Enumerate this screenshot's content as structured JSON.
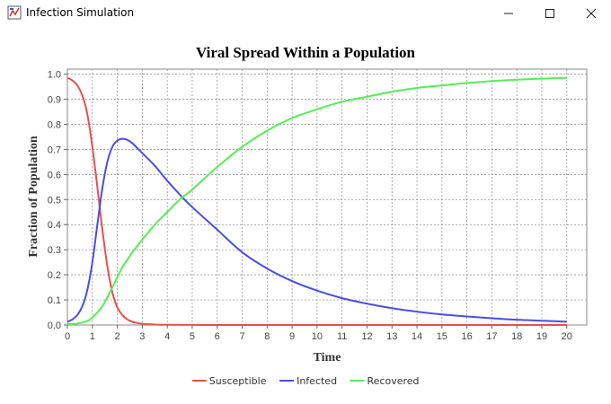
{
  "window": {
    "title": "Infection Simulation",
    "icon": "java-app-icon",
    "controls": [
      "minimize-icon",
      "maximize-icon",
      "close-icon"
    ]
  },
  "chart_data": {
    "type": "line",
    "title": "Viral Spread Within a Population",
    "xlabel": "Time",
    "ylabel": "Fraction of Population",
    "xlim": [
      0,
      20.8
    ],
    "ylim": [
      0,
      1.02
    ],
    "xticks": [
      0,
      1,
      2,
      3,
      4,
      5,
      6,
      7,
      8,
      9,
      10,
      11,
      12,
      13,
      14,
      15,
      16,
      17,
      18,
      19,
      20
    ],
    "yticks": [
      0.0,
      0.1,
      0.2,
      0.3,
      0.4,
      0.5,
      0.6,
      0.7,
      0.8,
      0.9,
      1.0
    ],
    "ytick_labels": [
      "0.0",
      "0.1",
      "0.2",
      "0.3",
      "0.4",
      "0.5",
      "0.6",
      "0.7",
      "0.8",
      "0.9",
      "1.0"
    ],
    "grid": true,
    "legend_position": "bottom-center",
    "series": [
      {
        "name": "Susceptible",
        "color": "#e8504f",
        "x": [
          0,
          0.2,
          0.4,
          0.6,
          0.8,
          1.0,
          1.2,
          1.4,
          1.6,
          1.8,
          2.0,
          2.2,
          2.4,
          2.6,
          2.8,
          3.0,
          3.5,
          4,
          5,
          6,
          8,
          10,
          12,
          14,
          16,
          18,
          20
        ],
        "y": [
          0.985,
          0.975,
          0.955,
          0.915,
          0.84,
          0.71,
          0.55,
          0.38,
          0.235,
          0.13,
          0.07,
          0.04,
          0.022,
          0.013,
          0.008,
          0.005,
          0.002,
          0.001,
          0.0003,
          0.0001,
          0,
          0,
          0,
          0,
          0,
          0,
          0
        ]
      },
      {
        "name": "Infected",
        "color": "#4a4de8",
        "x": [
          0,
          0.2,
          0.4,
          0.6,
          0.8,
          1.0,
          1.2,
          1.4,
          1.6,
          1.8,
          2.0,
          2.2,
          2.4,
          2.6,
          2.8,
          3.0,
          3.5,
          4,
          4.5,
          5,
          6,
          7,
          8,
          9,
          10,
          11,
          12,
          13,
          14,
          15,
          16,
          17,
          18,
          19,
          20
        ],
        "y": [
          0.013,
          0.022,
          0.04,
          0.075,
          0.14,
          0.25,
          0.4,
          0.545,
          0.65,
          0.71,
          0.735,
          0.742,
          0.738,
          0.725,
          0.705,
          0.685,
          0.635,
          0.575,
          0.52,
          0.47,
          0.38,
          0.29,
          0.225,
          0.175,
          0.137,
          0.107,
          0.085,
          0.067,
          0.053,
          0.042,
          0.034,
          0.027,
          0.021,
          0.017,
          0.013
        ]
      },
      {
        "name": "Recovered",
        "color": "#55ee55",
        "x": [
          0,
          0.4,
          0.8,
          1.0,
          1.2,
          1.4,
          1.6,
          1.8,
          2.0,
          2.2,
          2.4,
          2.6,
          2.8,
          3.0,
          3.5,
          4,
          4.5,
          5,
          6,
          7,
          8,
          9,
          10,
          11,
          12,
          13,
          14,
          15,
          16,
          17,
          18,
          19,
          20
        ],
        "y": [
          0.003,
          0.006,
          0.016,
          0.03,
          0.05,
          0.075,
          0.11,
          0.15,
          0.19,
          0.23,
          0.26,
          0.29,
          0.315,
          0.34,
          0.4,
          0.45,
          0.5,
          0.54,
          0.63,
          0.71,
          0.775,
          0.825,
          0.86,
          0.89,
          0.91,
          0.93,
          0.945,
          0.955,
          0.965,
          0.972,
          0.978,
          0.982,
          0.985
        ]
      }
    ]
  }
}
